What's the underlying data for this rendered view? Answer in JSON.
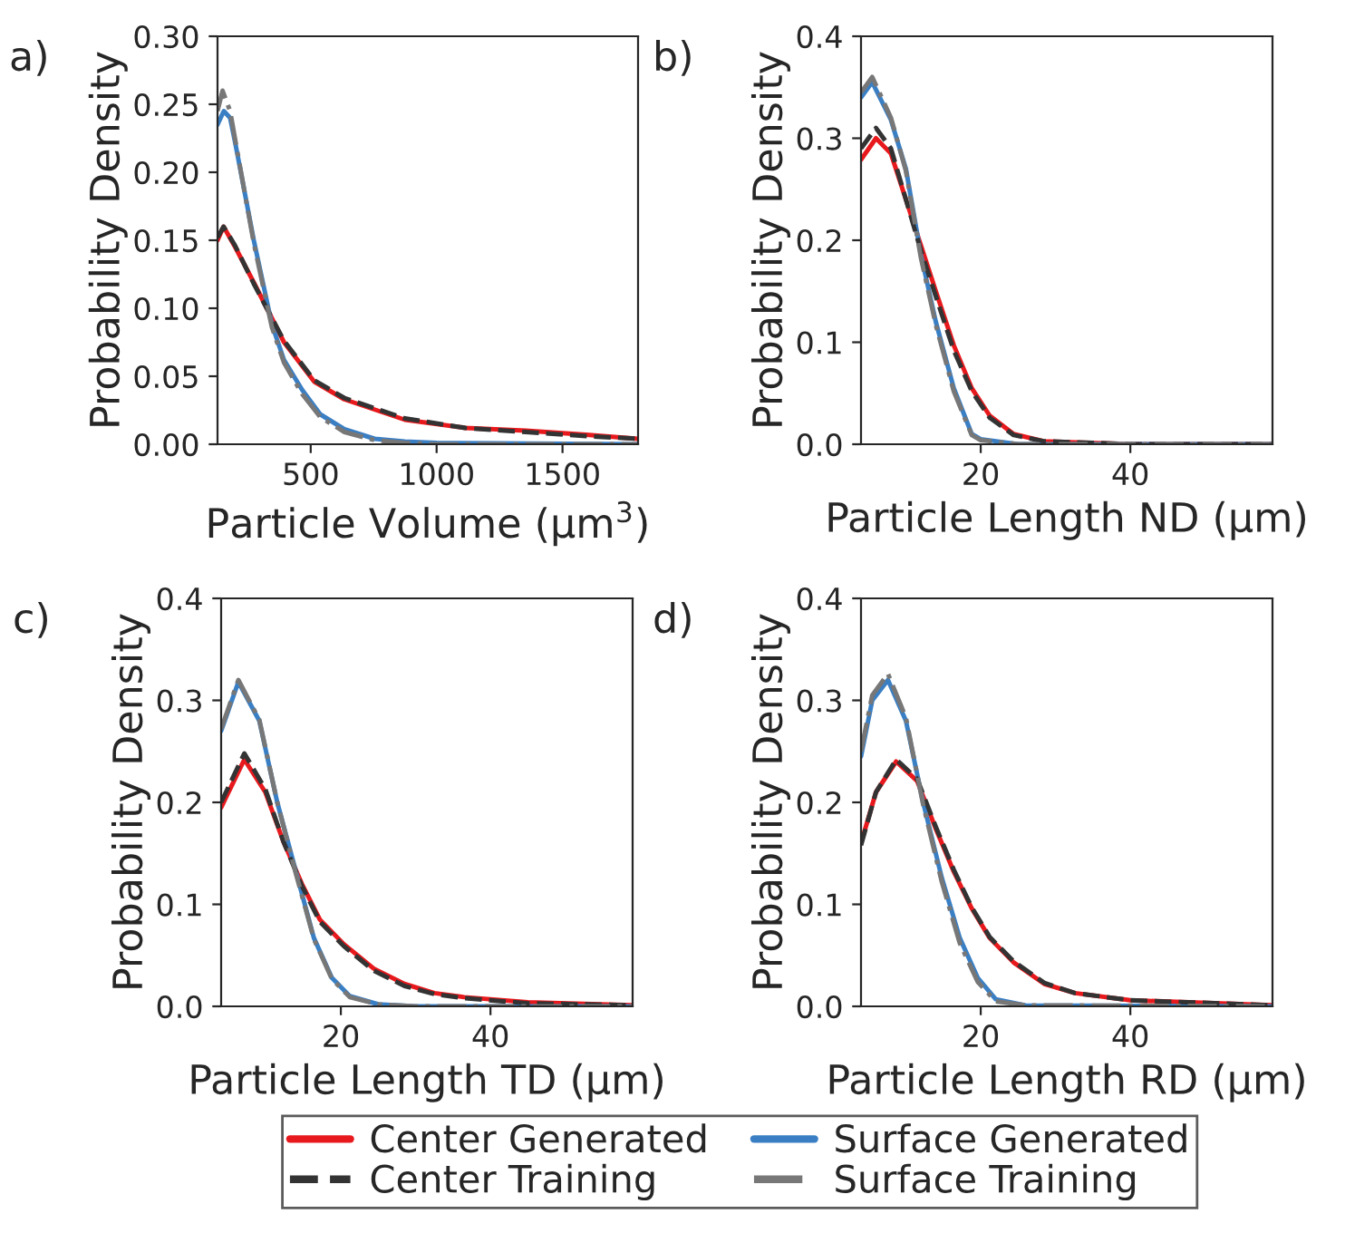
{
  "chart_data": [
    {
      "type": "line",
      "annotations": [
        "a)"
      ],
      "xlabel": "Particle Volume (μm$^{3}$)",
      "ylabel": "Probability Density",
      "xlim": [
        130,
        1800
      ],
      "ylim": [
        0,
        0.3
      ],
      "xticks": [
        500,
        1000,
        1500
      ],
      "yticks": [
        {
          "value": 0,
          "label": "0.00"
        },
        {
          "value": 0.05,
          "label": "0.05"
        },
        {
          "value": 0.1,
          "label": "0.10"
        },
        {
          "value": 0.15,
          "label": "0.15"
        },
        {
          "value": 0.2,
          "label": "0.20"
        },
        {
          "value": 0.25,
          "label": "0.25"
        },
        {
          "value": 0.3,
          "label": "0.30"
        }
      ],
      "grid": false,
      "legend": "bottom",
      "series": [
        {
          "name": "Center Generated",
          "color": "#e8191d",
          "line_style": "solid",
          "x": [
            130,
            154,
            200,
            274,
            394,
            514,
            634,
            874,
            1114,
            1354,
            1594,
            1800
          ],
          "values": [
            0.15,
            0.16,
            0.145,
            0.119,
            0.075,
            0.046,
            0.033,
            0.018,
            0.012,
            0.01,
            0.007,
            0.004
          ]
        },
        {
          "name": "Surface Generated",
          "color": "#3a7fc4",
          "line_style": "solid",
          "x": [
            130,
            155,
            180,
            202,
            274,
            346,
            394,
            466,
            538,
            634,
            754,
            874,
            1000,
            1800
          ],
          "values": [
            0.235,
            0.245,
            0.24,
            0.22,
            0.15,
            0.088,
            0.062,
            0.04,
            0.022,
            0.011,
            0.004,
            0.002,
            0.001,
            0
          ]
        },
        {
          "name": "Center Training",
          "color": "#333333",
          "line_style": "dashed",
          "x": [
            130,
            154,
            200,
            274,
            394,
            514,
            634,
            874,
            1114,
            1354,
            1594,
            1800
          ],
          "values": [
            0.152,
            0.16,
            0.146,
            0.118,
            0.076,
            0.047,
            0.034,
            0.019,
            0.012,
            0.009,
            0.006,
            0.004
          ]
        },
        {
          "name": "Surface Training",
          "color": "#777777",
          "line_style": "dashdot",
          "x": [
            130,
            150,
            180,
            202,
            274,
            346,
            394,
            466,
            538,
            634,
            754,
            874,
            1000,
            1800
          ],
          "values": [
            0.245,
            0.26,
            0.245,
            0.222,
            0.148,
            0.086,
            0.06,
            0.037,
            0.02,
            0.009,
            0.003,
            0.001,
            0,
            0
          ]
        }
      ]
    },
    {
      "type": "line",
      "annotations": [
        "b)"
      ],
      "xlabel": "Particle Length ND (μm)",
      "ylabel": "Probability Density",
      "xlim": [
        4,
        59
      ],
      "ylim": [
        0,
        0.4
      ],
      "xticks": [
        20,
        40
      ],
      "yticks": [
        {
          "value": 0,
          "label": "0.0"
        },
        {
          "value": 0.1,
          "label": "0.1"
        },
        {
          "value": 0.2,
          "label": "0.2"
        },
        {
          "value": 0.3,
          "label": "0.3"
        },
        {
          "value": 0.4,
          "label": "0.4"
        }
      ],
      "grid": false,
      "series": [
        {
          "color": "#e8191d",
          "line_style": "solid",
          "x": [
            4,
            6,
            8,
            10,
            12,
            14,
            16.4,
            18.8,
            21.2,
            24.4,
            28.4,
            40,
            59
          ],
          "values": [
            0.279,
            0.3,
            0.285,
            0.24,
            0.195,
            0.15,
            0.097,
            0.055,
            0.028,
            0.01,
            0.003,
            0,
            0
          ]
        },
        {
          "color": "#3a7fc4",
          "line_style": "solid",
          "x": [
            4,
            5.5,
            8,
            10,
            12,
            14,
            16.4,
            18.8,
            20,
            25,
            59
          ],
          "values": [
            0.34,
            0.355,
            0.318,
            0.27,
            0.186,
            0.12,
            0.055,
            0.01,
            0.005,
            0,
            0
          ]
        },
        {
          "color": "#333333",
          "line_style": "dashed",
          "x": [
            4,
            6,
            8,
            10,
            12,
            14,
            16.4,
            18.8,
            21.2,
            24.4,
            28.4,
            40,
            59
          ],
          "values": [
            0.29,
            0.31,
            0.29,
            0.24,
            0.19,
            0.145,
            0.092,
            0.052,
            0.026,
            0.009,
            0.003,
            0,
            0
          ]
        },
        {
          "color": "#777777",
          "line_style": "dashdot",
          "x": [
            4,
            5.5,
            8,
            10,
            12,
            14,
            16.4,
            18.8,
            20,
            25,
            59
          ],
          "values": [
            0.345,
            0.36,
            0.32,
            0.268,
            0.183,
            0.117,
            0.052,
            0.009,
            0.004,
            0,
            0
          ]
        }
      ]
    },
    {
      "type": "line",
      "annotations": [
        "c)"
      ],
      "xlabel": "Particle Length TD (μm)",
      "ylabel": "Probability Density",
      "xlim": [
        4,
        59
      ],
      "ylim": [
        0,
        0.4
      ],
      "xticks": [
        20,
        40
      ],
      "yticks": [
        {
          "value": 0,
          "label": "0.0"
        },
        {
          "value": 0.1,
          "label": "0.1"
        },
        {
          "value": 0.2,
          "label": "0.2"
        },
        {
          "value": 0.3,
          "label": "0.3"
        },
        {
          "value": 0.4,
          "label": "0.4"
        }
      ],
      "grid": false,
      "series": [
        {
          "color": "#e8191d",
          "line_style": "solid",
          "x": [
            4,
            7.1,
            9.9,
            12.3,
            14.8,
            17.2,
            20.4,
            24.4,
            28.5,
            32.5,
            36.5,
            45,
            59
          ],
          "values": [
            0.195,
            0.242,
            0.21,
            0.162,
            0.12,
            0.085,
            0.061,
            0.037,
            0.022,
            0.013,
            0.009,
            0.004,
            0.001
          ]
        },
        {
          "color": "#3a7fc4",
          "line_style": "solid",
          "x": [
            4,
            6.3,
            9.1,
            11.5,
            14,
            16.4,
            18.8,
            21.2,
            25,
            30,
            59
          ],
          "values": [
            0.27,
            0.318,
            0.28,
            0.2,
            0.132,
            0.067,
            0.028,
            0.01,
            0.002,
            0,
            0
          ]
        },
        {
          "color": "#333333",
          "line_style": "dashed",
          "x": [
            4,
            7.1,
            9.9,
            12.3,
            14.8,
            17.2,
            20.4,
            24.4,
            28.5,
            32.5,
            36.5,
            45,
            59
          ],
          "values": [
            0.2,
            0.248,
            0.213,
            0.162,
            0.118,
            0.083,
            0.059,
            0.035,
            0.02,
            0.012,
            0.008,
            0.003,
            0.001
          ]
        },
        {
          "color": "#777777",
          "line_style": "dashdot",
          "x": [
            4,
            6.3,
            9.1,
            11.5,
            14,
            16.4,
            18.8,
            21.2,
            25,
            30,
            59
          ],
          "values": [
            0.272,
            0.32,
            0.281,
            0.2,
            0.13,
            0.066,
            0.027,
            0.009,
            0.002,
            0,
            0
          ]
        }
      ]
    },
    {
      "type": "line",
      "annotations": [
        "d)"
      ],
      "xlabel": "Particle Length RD (μm)",
      "ylabel": "Probability Density",
      "xlim": [
        4,
        59
      ],
      "ylim": [
        0,
        0.4
      ],
      "xticks": [
        20,
        40
      ],
      "yticks": [
        {
          "value": 0,
          "label": "0.0"
        },
        {
          "value": 0.1,
          "label": "0.1"
        },
        {
          "value": 0.2,
          "label": "0.2"
        },
        {
          "value": 0.3,
          "label": "0.3"
        },
        {
          "value": 0.4,
          "label": "0.4"
        }
      ],
      "grid": false,
      "series": [
        {
          "color": "#e8191d",
          "line_style": "solid",
          "x": [
            4,
            6,
            8.7,
            11.5,
            14,
            16.4,
            18.8,
            21.2,
            24.4,
            28.5,
            32.6,
            40,
            59
          ],
          "values": [
            0.16,
            0.21,
            0.24,
            0.221,
            0.174,
            0.132,
            0.096,
            0.067,
            0.043,
            0.022,
            0.013,
            0.006,
            0.001
          ]
        },
        {
          "color": "#3a7fc4",
          "line_style": "solid",
          "x": [
            4,
            5.5,
            7.6,
            10,
            12.3,
            14.8,
            17.2,
            19.6,
            22,
            26,
            59
          ],
          "values": [
            0.245,
            0.3,
            0.32,
            0.28,
            0.2,
            0.126,
            0.067,
            0.028,
            0.007,
            0.001,
            0
          ]
        },
        {
          "color": "#333333",
          "line_style": "dashed",
          "x": [
            4,
            6,
            8.7,
            11.5,
            14,
            16.4,
            18.8,
            21.2,
            24.4,
            28.5,
            32.6,
            40,
            59
          ],
          "values": [
            0.158,
            0.21,
            0.242,
            0.223,
            0.176,
            0.134,
            0.097,
            0.068,
            0.044,
            0.023,
            0.013,
            0.006,
            0.001
          ]
        },
        {
          "color": "#777777",
          "line_style": "dashdot",
          "x": [
            4,
            5.5,
            7.6,
            10,
            12.3,
            14.8,
            17.2,
            19.6,
            22,
            26,
            59
          ],
          "values": [
            0.25,
            0.305,
            0.326,
            0.283,
            0.198,
            0.122,
            0.062,
            0.024,
            0.005,
            0.001,
            0
          ]
        }
      ]
    }
  ]
}
